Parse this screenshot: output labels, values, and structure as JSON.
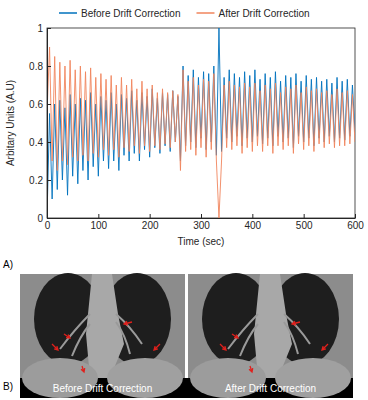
{
  "chart_data": {
    "type": "line",
    "xlabel": "Time (sec)",
    "ylabel": "Arbitary Units (A.U)",
    "x": [
      0,
      5,
      10,
      15,
      20,
      25,
      30,
      35,
      40,
      45,
      50,
      55,
      60,
      65,
      70,
      75,
      80,
      85,
      90,
      95,
      100,
      105,
      110,
      115,
      120,
      125,
      130,
      135,
      140,
      145,
      150,
      155,
      160,
      165,
      170,
      175,
      180,
      185,
      190,
      195,
      200,
      205,
      210,
      215,
      220,
      225,
      230,
      235,
      240,
      245,
      250,
      255,
      260,
      265,
      270,
      275,
      280,
      285,
      290,
      295,
      300,
      305,
      310,
      315,
      320,
      325,
      330,
      335,
      340,
      345,
      350,
      355,
      360,
      365,
      370,
      375,
      380,
      385,
      390,
      395,
      400,
      405,
      410,
      415,
      420,
      425,
      430,
      435,
      440,
      445,
      450,
      455,
      460,
      465,
      470,
      475,
      480,
      485,
      490,
      495,
      500,
      505,
      510,
      515,
      520,
      525,
      530,
      535,
      540,
      545,
      550,
      555,
      560,
      565,
      570,
      575,
      580,
      585,
      590,
      595,
      600
    ],
    "series": [
      {
        "name": "Before Drift Correction",
        "color": "#0072bd",
        "values": [
          0.0,
          0.55,
          0.1,
          0.6,
          0.15,
          0.62,
          0.2,
          0.58,
          0.12,
          0.65,
          0.22,
          0.6,
          0.18,
          0.63,
          0.25,
          0.62,
          0.2,
          0.66,
          0.27,
          0.6,
          0.22,
          0.64,
          0.3,
          0.62,
          0.26,
          0.66,
          0.3,
          0.6,
          0.25,
          0.65,
          0.33,
          0.63,
          0.3,
          0.67,
          0.34,
          0.62,
          0.3,
          0.66,
          0.36,
          0.64,
          0.32,
          0.68,
          0.37,
          0.63,
          0.34,
          0.66,
          0.38,
          0.65,
          0.35,
          0.67,
          0.4,
          0.64,
          0.3,
          0.8,
          0.38,
          0.75,
          0.4,
          0.78,
          0.37,
          0.74,
          0.42,
          0.77,
          0.36,
          0.76,
          0.4,
          0.8,
          0.33,
          1.0,
          0.35,
          0.74,
          0.42,
          0.78,
          0.4,
          0.76,
          0.43,
          0.74,
          0.38,
          0.77,
          0.42,
          0.75,
          0.4,
          0.78,
          0.43,
          0.73,
          0.39,
          0.76,
          0.42,
          0.74,
          0.38,
          0.77,
          0.43,
          0.72,
          0.4,
          0.75,
          0.42,
          0.74,
          0.37,
          0.76,
          0.43,
          0.72,
          0.4,
          0.75,
          0.42,
          0.73,
          0.38,
          0.74,
          0.42,
          0.72,
          0.4,
          0.73,
          0.43,
          0.71,
          0.4,
          0.74,
          0.42,
          0.72,
          0.41,
          0.73,
          0.43,
          0.7,
          0.45
        ]
      },
      {
        "name": "After Drift Correction",
        "color": "#f0845c",
        "values": [
          0.55,
          0.9,
          0.3,
          0.85,
          0.25,
          0.82,
          0.3,
          0.8,
          0.28,
          0.83,
          0.32,
          0.78,
          0.3,
          0.8,
          0.33,
          0.77,
          0.3,
          0.79,
          0.34,
          0.74,
          0.32,
          0.76,
          0.36,
          0.73,
          0.33,
          0.75,
          0.36,
          0.7,
          0.32,
          0.74,
          0.37,
          0.7,
          0.35,
          0.73,
          0.38,
          0.68,
          0.34,
          0.72,
          0.38,
          0.68,
          0.35,
          0.7,
          0.38,
          0.66,
          0.36,
          0.68,
          0.39,
          0.66,
          0.37,
          0.67,
          0.4,
          0.65,
          0.25,
          0.78,
          0.35,
          0.72,
          0.36,
          0.74,
          0.33,
          0.7,
          0.37,
          0.73,
          0.32,
          0.72,
          0.36,
          0.76,
          0.3,
          0.0,
          0.3,
          0.7,
          0.37,
          0.72,
          0.36,
          0.7,
          0.38,
          0.69,
          0.34,
          0.71,
          0.37,
          0.69,
          0.35,
          0.71,
          0.38,
          0.67,
          0.35,
          0.7,
          0.38,
          0.68,
          0.34,
          0.71,
          0.38,
          0.66,
          0.36,
          0.69,
          0.38,
          0.68,
          0.34,
          0.7,
          0.39,
          0.66,
          0.36,
          0.69,
          0.38,
          0.67,
          0.35,
          0.68,
          0.39,
          0.66,
          0.37,
          0.67,
          0.39,
          0.65,
          0.37,
          0.68,
          0.38,
          0.66,
          0.38,
          0.67,
          0.39,
          0.65,
          0.4
        ]
      }
    ],
    "xlim": [
      0,
      600
    ],
    "ylim": [
      0,
      1
    ],
    "xticks": [
      0,
      100,
      200,
      300,
      400,
      500,
      600
    ],
    "yticks": [
      0,
      0.2,
      0.4,
      0.6,
      0.8,
      1
    ],
    "grid": false,
    "legend": "top"
  },
  "panel_labels": [
    "A)",
    "B)"
  ],
  "images": [
    {
      "caption": "Before Drift Correction"
    },
    {
      "caption": "After Drift Correction"
    }
  ]
}
